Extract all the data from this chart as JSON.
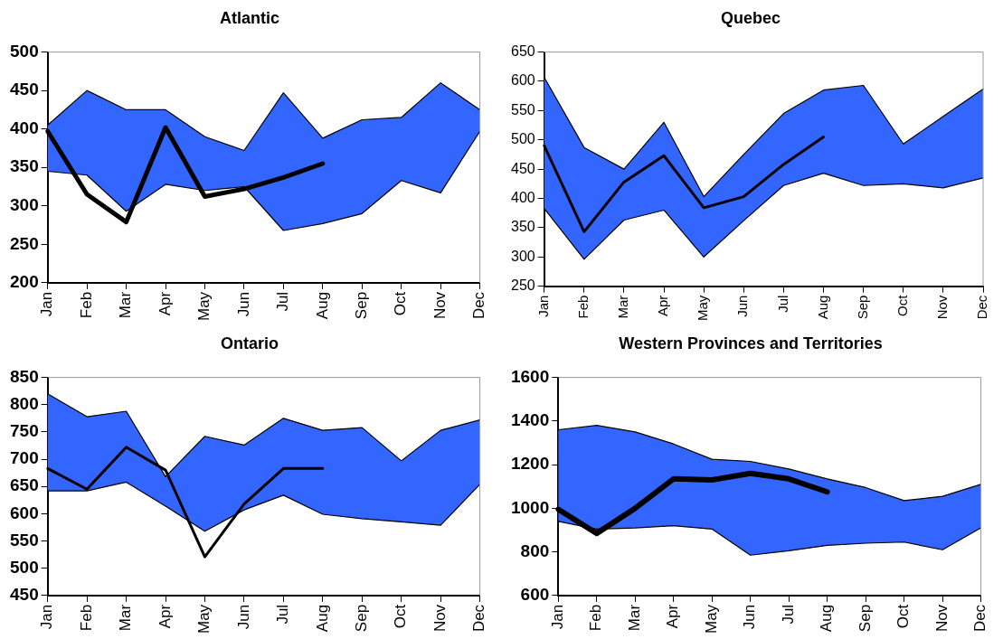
{
  "chart_data": [
    {
      "type": "line",
      "title": "Atlantic",
      "categories": [
        "Jan",
        "Feb",
        "Mar",
        "Apr",
        "May",
        "Jun",
        "Jul",
        "Aug",
        "Sep",
        "Oct",
        "Nov",
        "Dec"
      ],
      "ylim": [
        200,
        500
      ],
      "yticks": [
        200,
        250,
        300,
        350,
        400,
        450,
        500
      ],
      "grid": false,
      "legend": false,
      "marker": "none",
      "series": [
        {
          "color": "#000000",
          "values": [
            397,
            315,
            279,
            402,
            312,
            322,
            337,
            355,
            null,
            null,
            null,
            null
          ],
          "lower": [
            345,
            340,
            293,
            328,
            320,
            325,
            268,
            277,
            290,
            333,
            317,
            397
          ],
          "upper": [
            405,
            450,
            425,
            425,
            390,
            372,
            447,
            388,
            412,
            415,
            460,
            425
          ]
        },
        {
          "color": "#000000",
          "values": [
            405,
            450,
            425,
            425,
            390,
            372,
            447,
            388,
            412,
            415,
            460,
            425
          ]
        },
        {
          "color": "#000000",
          "values": [
            345,
            340,
            293,
            328,
            320,
            325,
            268,
            277,
            290,
            333,
            317,
            397
          ]
        }
      ]
    },
    {
      "type": "line",
      "title": "Quebec",
      "categories": [
        "Jan",
        "Feb",
        "Mar",
        "Apr",
        "May",
        "Jun",
        "Jul",
        "Aug",
        "Sep",
        "Oct",
        "Nov",
        "Dec"
      ],
      "ylim": [
        250,
        650
      ],
      "yticks": [
        250,
        300,
        350,
        400,
        450,
        500,
        550,
        600,
        650
      ],
      "grid": false,
      "legend": false,
      "marker": "none",
      "series": [
        {
          "color": "#000000",
          "values": [
            490,
            343,
            428,
            473,
            384,
            403,
            458,
            505,
            null,
            null,
            null,
            null
          ],
          "lower": [
            383,
            296,
            363,
            380,
            300,
            362,
            422,
            443,
            422,
            425,
            418,
            435
          ],
          "upper": [
            607,
            487,
            450,
            530,
            403,
            475,
            545,
            585,
            593,
            493,
            540,
            587
          ]
        },
        {
          "color": "#000000",
          "values": [
            607,
            487,
            450,
            530,
            403,
            475,
            545,
            585,
            593,
            493,
            540,
            587
          ]
        },
        {
          "color": "#000000",
          "values": [
            383,
            296,
            363,
            380,
            300,
            362,
            422,
            443,
            422,
            425,
            418,
            435
          ]
        }
      ]
    },
    {
      "type": "line",
      "title": "Ontario",
      "categories": [
        "Jan",
        "Feb",
        "Mar",
        "Apr",
        "May",
        "Jun",
        "Jul",
        "Aug",
        "Sep",
        "Oct",
        "Nov",
        "Dec"
      ],
      "ylim": [
        450,
        850
      ],
      "yticks": [
        450,
        500,
        550,
        600,
        650,
        700,
        750,
        800,
        850
      ],
      "grid": false,
      "legend": false,
      "marker": "none",
      "series": [
        {
          "color": "#000000",
          "values": [
            683,
            645,
            722,
            680,
            521,
            618,
            683,
            683,
            null,
            null,
            null,
            null
          ],
          "lower": [
            642,
            642,
            658,
            614,
            568,
            607,
            634,
            599,
            591,
            585,
            579,
            654
          ],
          "upper": [
            820,
            778,
            788,
            668,
            742,
            726,
            775,
            753,
            758,
            697,
            753,
            772
          ]
        },
        {
          "color": "#000000",
          "values": [
            820,
            778,
            788,
            668,
            742,
            726,
            775,
            753,
            758,
            697,
            753,
            772
          ]
        },
        {
          "color": "#000000",
          "values": [
            642,
            642,
            658,
            614,
            568,
            607,
            634,
            599,
            591,
            585,
            579,
            654
          ]
        }
      ]
    },
    {
      "type": "line",
      "title": "Western Provinces and Territories",
      "categories": [
        "Jan",
        "Feb",
        "Mar",
        "Apr",
        "May",
        "Jun",
        "Jul",
        "Aug",
        "Sep",
        "Oct",
        "Nov",
        "Dec"
      ],
      "ylim": [
        600,
        1600
      ],
      "yticks": [
        600,
        800,
        1000,
        1200,
        1400,
        1600
      ],
      "grid": false,
      "legend": false,
      "marker": "none",
      "series": [
        {
          "color": "#000000",
          "values": [
            995,
            885,
            1000,
            1135,
            1130,
            1160,
            1135,
            1075,
            null,
            null,
            null,
            null
          ],
          "lower": [
            940,
            905,
            910,
            920,
            905,
            785,
            805,
            830,
            840,
            845,
            810,
            910
          ],
          "upper": [
            1360,
            1380,
            1350,
            1295,
            1225,
            1215,
            1180,
            1135,
            1095,
            1035,
            1055,
            1110
          ]
        },
        {
          "color": "#000000",
          "values": [
            1360,
            1380,
            1350,
            1295,
            1225,
            1215,
            1180,
            1135,
            1095,
            1035,
            1055,
            1110
          ]
        },
        {
          "color": "#000000",
          "values": [
            940,
            905,
            910,
            920,
            905,
            785,
            805,
            830,
            840,
            845,
            810,
            910
          ]
        }
      ]
    }
  ]
}
